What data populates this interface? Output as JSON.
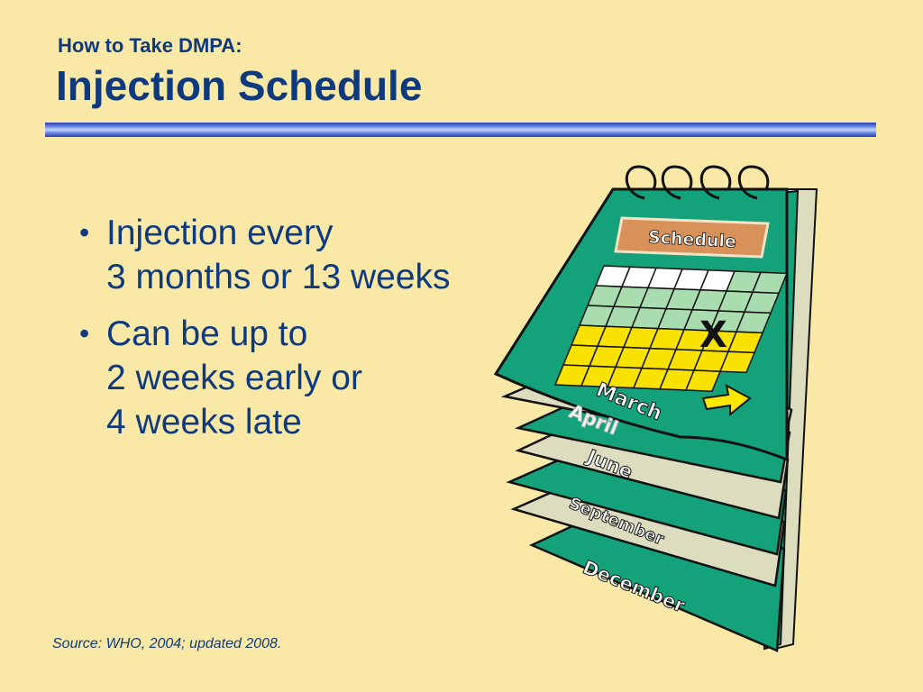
{
  "slide": {
    "subtitle": "How to Take DMPA:",
    "title": "Injection Schedule",
    "bullets": [
      {
        "lines": [
          "Injection every",
          "3 months or 13 weeks"
        ]
      },
      {
        "lines": [
          "Can be up to",
          "2 weeks early or",
          "4 weeks late"
        ]
      }
    ],
    "source": "Source: WHO, 2004; updated 2008."
  },
  "calendar": {
    "header_label": "Schedule",
    "months": [
      "March",
      "April",
      "June",
      "September",
      "December"
    ],
    "mark": "X",
    "colors": {
      "page_green": "#13a27a",
      "page_beige": "#dcdcbe",
      "header_orange": "#d9915a",
      "cell_white": "#ffffff",
      "cell_light_green": "#a9dcae",
      "cell_yellow": "#f9e100",
      "arrow_yellow": "#ffe800"
    }
  },
  "colors": {
    "background": "#fae8a6",
    "text_navy": "#0d3a7e",
    "rule_blue": "#2a3fae"
  }
}
